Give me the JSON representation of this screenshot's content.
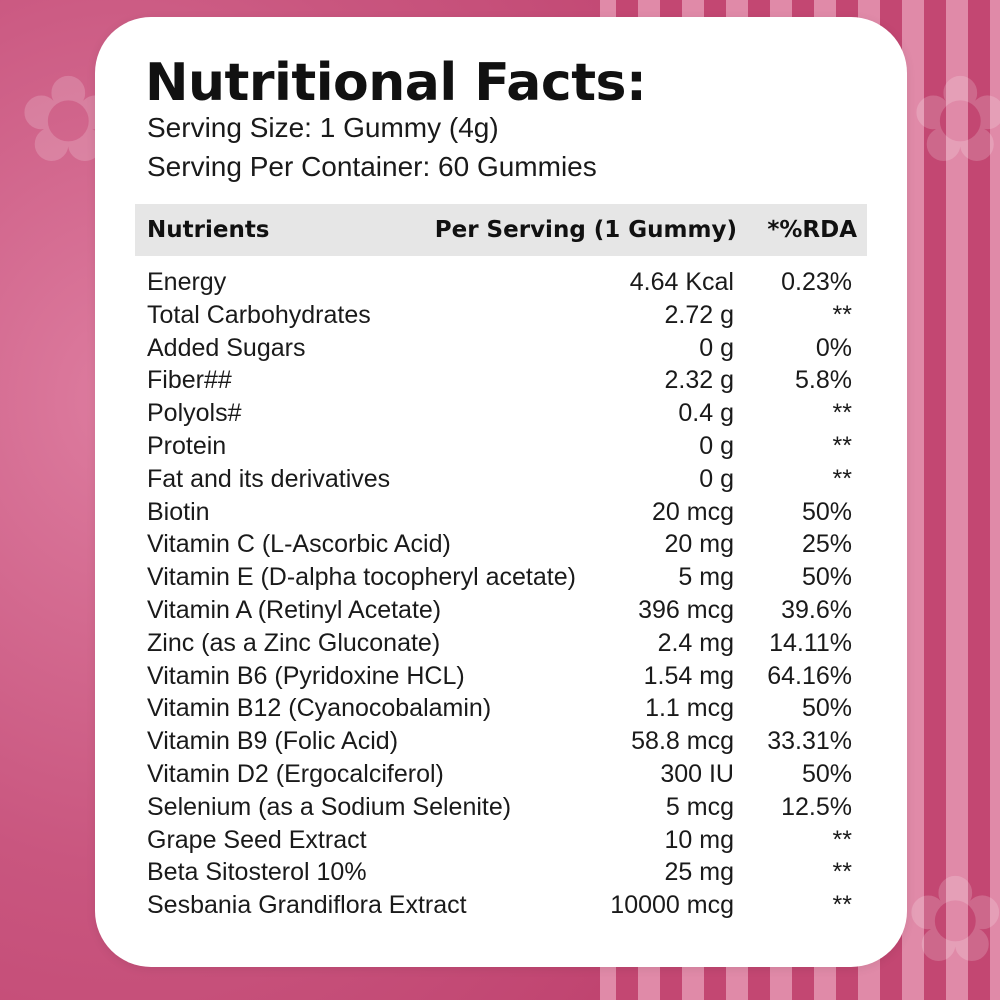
{
  "title": "Nutritional Facts:",
  "serving_size": "Serving Size: 1 Gummy (4g)",
  "servings_per_container": "Serving Per Container: 60 Gummies",
  "columns": {
    "nutrients": "Nutrients",
    "per_serving": "Per Serving (1 Gummy)",
    "rda": "*%RDA"
  },
  "rows": [
    {
      "name": "Energy",
      "amount": "4.64 Kcal",
      "rda": "0.23%"
    },
    {
      "name": "Total Carbohydrates",
      "amount": "2.72 g",
      "rda": "**"
    },
    {
      "name": "Added Sugars",
      "amount": "0 g",
      "rda": "0%"
    },
    {
      "name": "Fiber##",
      "amount": "2.32 g",
      "rda": "5.8%"
    },
    {
      "name": "Polyols#",
      "amount": "0.4 g",
      "rda": "**"
    },
    {
      "name": "Protein",
      "amount": "0 g",
      "rda": "**"
    },
    {
      "name": "Fat and its derivatives",
      "amount": "0 g",
      "rda": "**"
    },
    {
      "name": "Biotin",
      "amount": "20 mcg",
      "rda": "50%"
    },
    {
      "name": "Vitamin C (L-Ascorbic Acid)",
      "amount": "20 mg",
      "rda": "25%"
    },
    {
      "name": "Vitamin E (D-alpha tocopheryl acetate)",
      "amount": "5 mg",
      "rda": "50%"
    },
    {
      "name": "Vitamin A (Retinyl Acetate)",
      "amount": "396 mcg",
      "rda": "39.6%"
    },
    {
      "name": "Zinc (as a Zinc Gluconate)",
      "amount": "2.4 mg",
      "rda": "14.11%"
    },
    {
      "name": "Vitamin B6 (Pyridoxine HCL)",
      "amount": "1.54 mg",
      "rda": "64.16%"
    },
    {
      "name": "Vitamin B12 (Cyanocobalamin)",
      "amount": "1.1 mcg",
      "rda": "50%"
    },
    {
      "name": "Vitamin B9 (Folic Acid)",
      "amount": "58.8 mcg",
      "rda": "33.31%"
    },
    {
      "name": "Vitamin D2 (Ergocalciferol)",
      "amount": "300 IU",
      "rda": "50%"
    },
    {
      "name": "Selenium (as a Sodium Selenite)",
      "amount": "5 mcg",
      "rda": "12.5%"
    },
    {
      "name": "Grape Seed Extract",
      "amount": "10 mg",
      "rda": "**"
    },
    {
      "name": "Beta Sitosterol 10%",
      "amount": "25 mg",
      "rda": "**"
    },
    {
      "name": "Sesbania Grandiflora Extract",
      "amount": "10000 mcg",
      "rda": "**"
    }
  ],
  "colors": {
    "background_pink": "#c34772",
    "background_stripe_light": "#e08aa8",
    "card": "#ffffff",
    "header_row": "#e6e6e6",
    "text": "#1a1a1a"
  },
  "icons": [
    "leaf-decoration-icon"
  ]
}
